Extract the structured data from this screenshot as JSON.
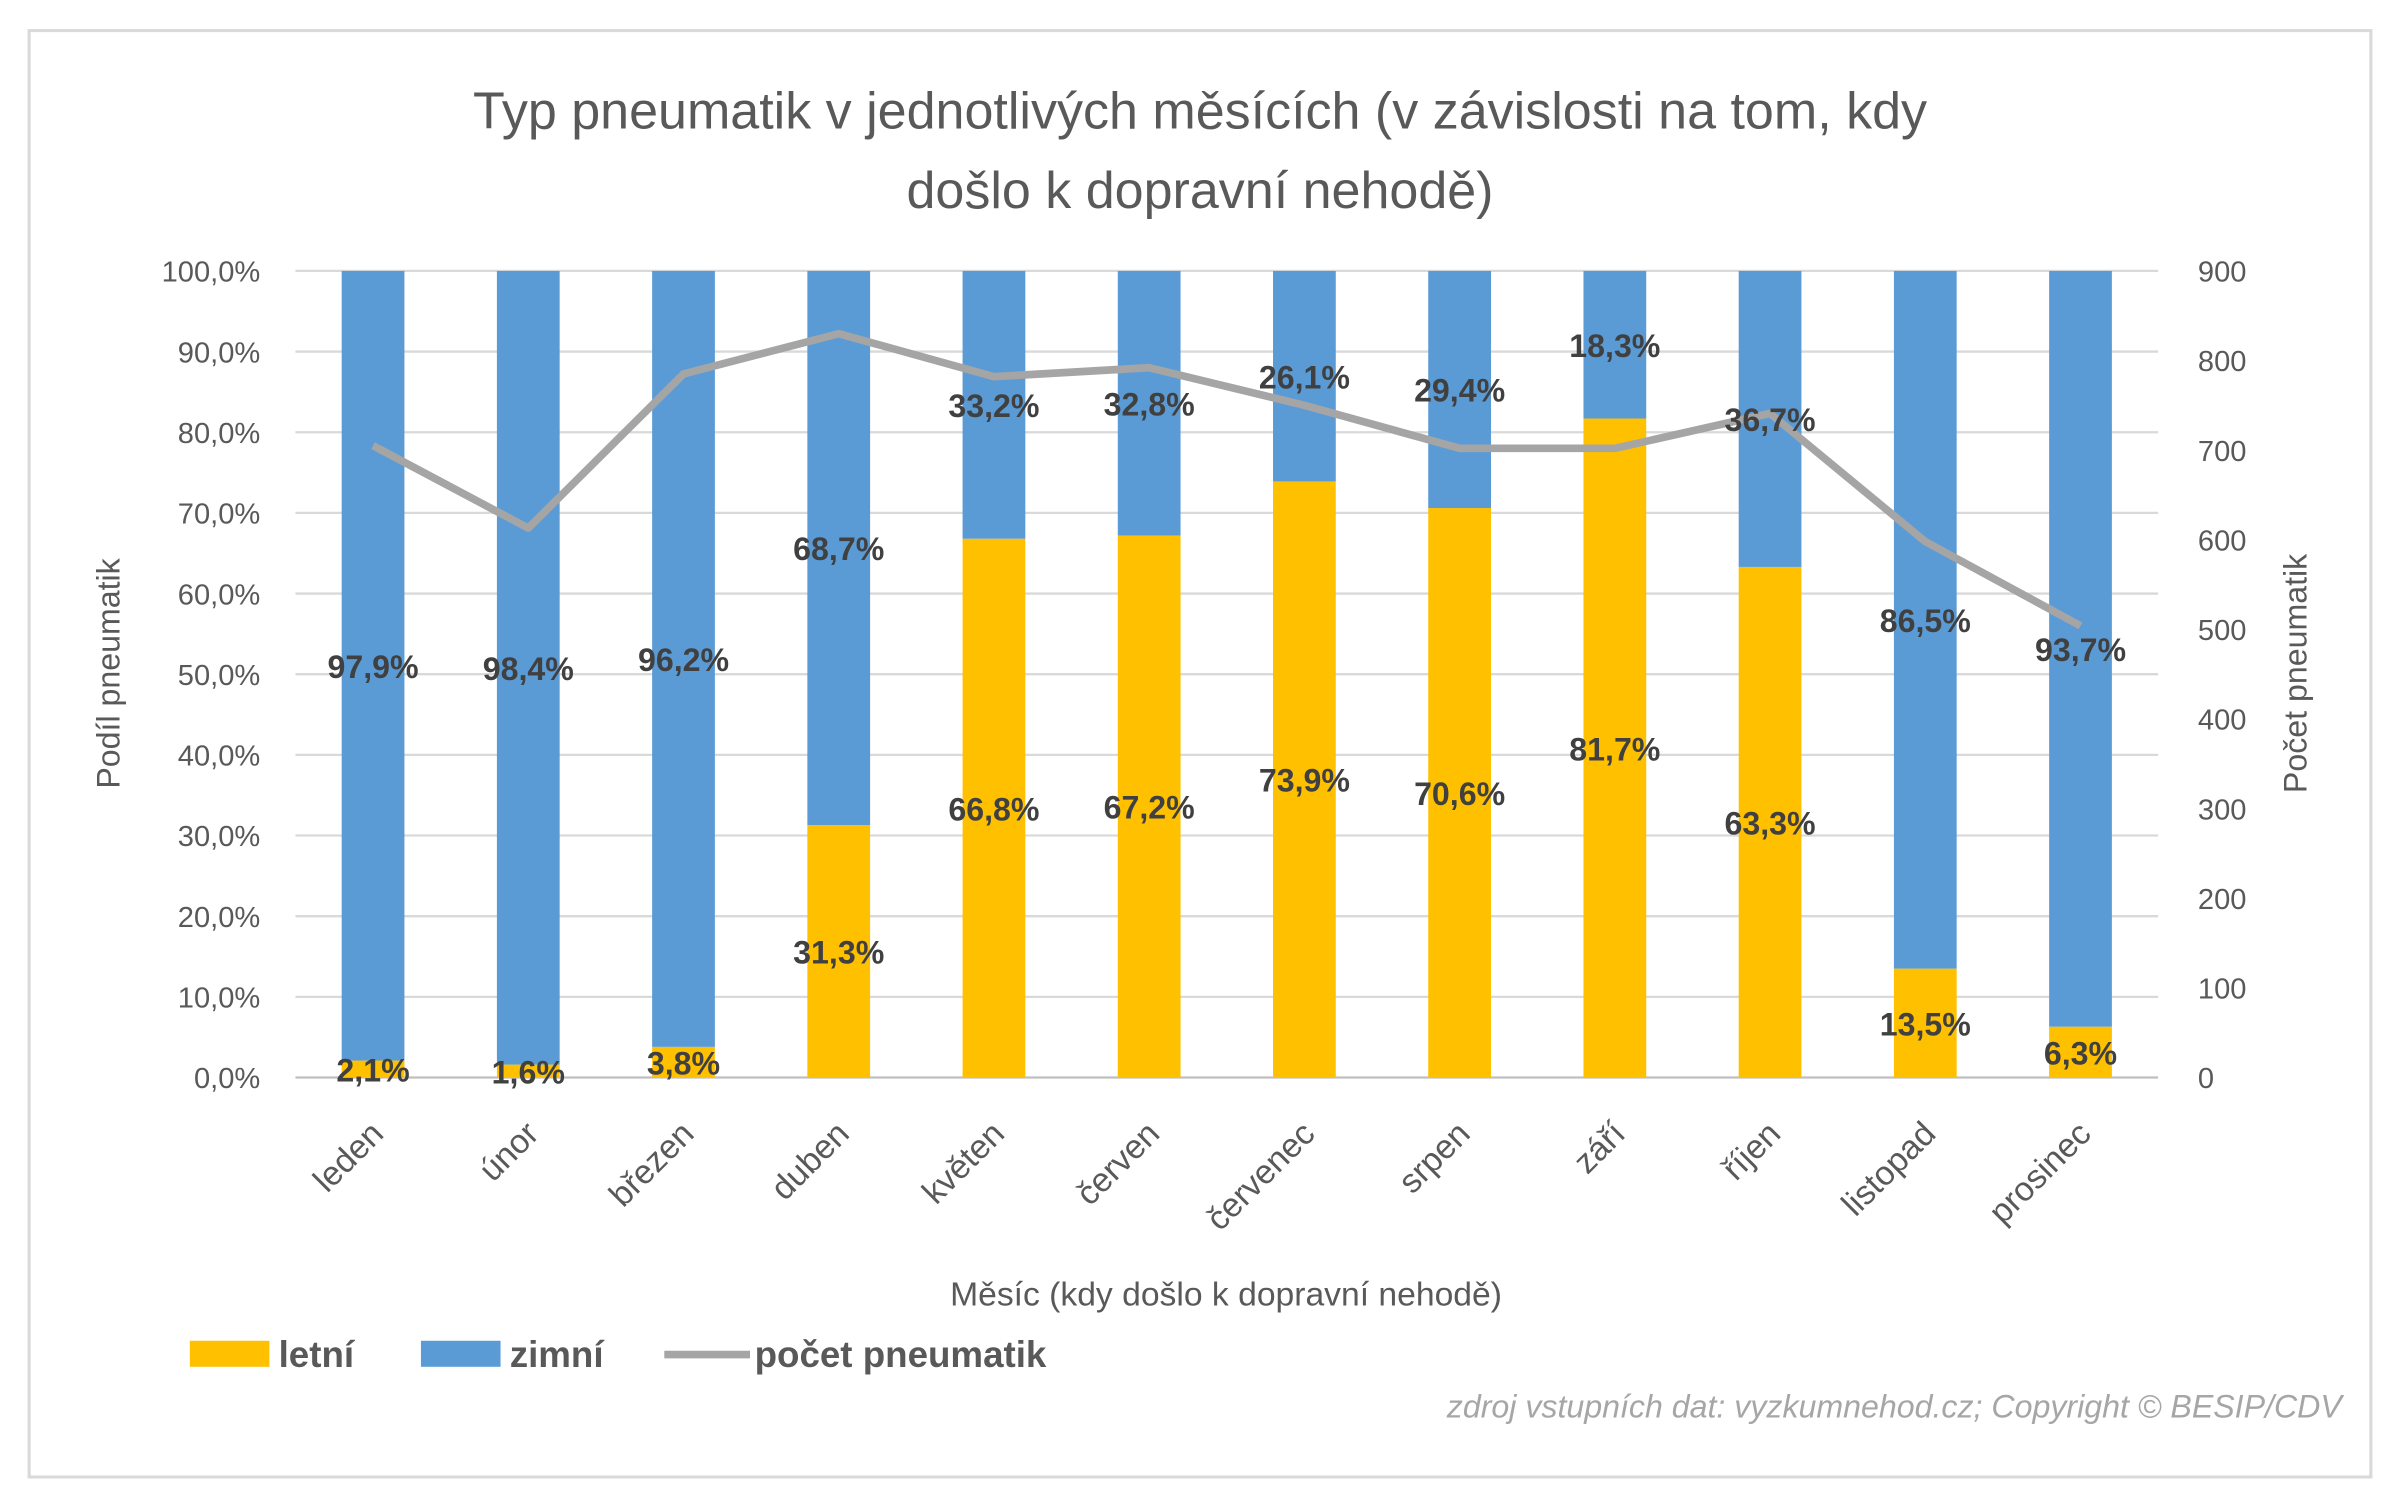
{
  "chart_data": {
    "type": "bar",
    "stacked": true,
    "percent_stacked": true,
    "title": "Typ pneumatik v jednotlivých měsících (v závislosti na tom, kdy došlo k dopravní nehodě)",
    "title_lines": [
      "Typ pneumatik v jednotlivých měsících (v závislosti na tom, kdy",
      "došlo k dopravní nehodě)"
    ],
    "xlabel": "Měsíc (kdy došlo k dopravní nehodě)",
    "ylabel": "Podíl pneumatik",
    "y2label": "Počet pneumatik",
    "ylim": [
      0,
      100
    ],
    "y2lim": [
      0,
      900
    ],
    "yticks": [
      "0,0%",
      "10,0%",
      "20,0%",
      "30,0%",
      "40,0%",
      "50,0%",
      "60,0%",
      "70,0%",
      "80,0%",
      "90,0%",
      "100,0%"
    ],
    "y2ticks": [
      "0",
      "100",
      "200",
      "300",
      "400",
      "500",
      "600",
      "700",
      "800",
      "900"
    ],
    "grid": true,
    "categories": [
      "leden",
      "únor",
      "březen",
      "duben",
      "květen",
      "červen",
      "červenec",
      "srpen",
      "září",
      "říjen",
      "listopad",
      "prosinec"
    ],
    "series": [
      {
        "name": "letní",
        "type": "bar",
        "color": "#FFC000",
        "values": [
          2.1,
          1.6,
          3.8,
          31.3,
          66.8,
          67.2,
          73.9,
          70.6,
          81.7,
          63.3,
          13.5,
          6.3
        ],
        "labels": [
          "2,1%",
          "1,6%",
          "3,8%",
          "31,3%",
          "66,8%",
          "67,2%",
          "73,9%",
          "70,6%",
          "81,7%",
          "63,3%",
          "13,5%",
          "6,3%"
        ]
      },
      {
        "name": "zimní",
        "type": "bar",
        "color": "#5B9BD5",
        "values": [
          97.9,
          98.4,
          96.2,
          68.7,
          33.2,
          32.8,
          26.1,
          29.4,
          18.3,
          36.7,
          86.5,
          93.7
        ],
        "labels": [
          "97,9%",
          "98,4%",
          "96,2%",
          "68,7%",
          "33,2%",
          "32,8%",
          "26,1%",
          "29,4%",
          "18,3%",
          "36,7%",
          "86,5%",
          "93,7%"
        ]
      },
      {
        "name": "počet pneumatik",
        "type": "line",
        "axis": "right",
        "color": "#A5A5A5",
        "values": [
          705,
          613,
          785,
          830,
          782,
          792,
          750,
          702,
          702,
          741,
          598,
          504
        ]
      }
    ],
    "legend_position": "bottom-left",
    "source_note": "zdroj vstupních dat: vyzkumnehod.cz; Copyright © BESIP/CDV"
  }
}
